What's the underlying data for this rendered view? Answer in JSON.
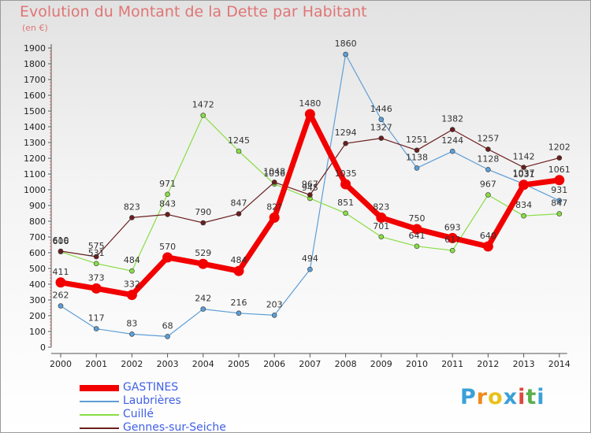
{
  "title": "Evolution du Montant de la Dette par Habitant",
  "subtitle": "(en €)",
  "logo": {
    "text": "Proxiti",
    "colors": [
      "#3aa0d8",
      "#f08a1c",
      "#e8c21a",
      "#3aa0d8",
      "#e0463c",
      "#5ab04a",
      "#3aa0d8"
    ]
  },
  "chart_data": {
    "type": "line",
    "x": [
      "2000",
      "2001",
      "2002",
      "2003",
      "2004",
      "2005",
      "2006",
      "2007",
      "2008",
      "2009",
      "2010",
      "2011",
      "2012",
      "2013",
      "2014"
    ],
    "ylim": [
      0,
      1900
    ],
    "yticks": [
      0,
      100,
      200,
      300,
      400,
      500,
      600,
      700,
      800,
      900,
      1000,
      1100,
      1200,
      1300,
      1400,
      1500,
      1600,
      1700,
      1800,
      1900
    ],
    "grid": false,
    "legend_position": "bottom-left",
    "series": [
      {
        "name": "GASTINES",
        "color": "#f20000",
        "values": [
          411,
          373,
          332,
          570,
          529,
          484,
          823,
          1480,
          1035,
          823,
          750,
          693,
          640,
          1031,
          1061
        ],
        "labels": [
          "411",
          "373",
          "332",
          "570",
          "529",
          "484",
          "82?",
          "1480",
          "1035",
          "823",
          "750",
          "693",
          "640",
          "1031",
          "1061"
        ]
      },
      {
        "name": "Laubrières",
        "color": "#5e9ed6",
        "values": [
          262,
          117,
          83,
          68,
          242,
          216,
          203,
          494,
          1860,
          1446,
          1138,
          1244,
          1128,
          1037,
          931
        ],
        "labels": [
          "262",
          "117",
          "83",
          "68",
          "242",
          "216",
          "203",
          "494",
          "1860",
          "1446",
          "1138",
          "1244",
          "1128",
          "1037",
          "931"
        ]
      },
      {
        "name": "Cuillé",
        "color": "#88dd44",
        "values": [
          606,
          531,
          484,
          971,
          1472,
          1245,
          1036,
          945,
          851,
          701,
          641,
          614,
          967,
          834,
          847
        ],
        "labels": [
          "606",
          "531",
          "484",
          "971",
          "1472",
          "1245",
          "1036",
          "945",
          "851",
          "701",
          "641",
          "61?",
          "967",
          "834",
          "847"
        ]
      },
      {
        "name": "Gennes-sur-Seiche",
        "color": "#6b1e1e",
        "values": [
          610,
          575,
          823,
          843,
          790,
          847,
          1048,
          967,
          1294,
          1327,
          1251,
          1382,
          1257,
          1142,
          1202
        ],
        "labels": [
          "610",
          "575",
          "823",
          "843",
          "790",
          "847",
          "1048",
          "967",
          "1294",
          "1327",
          "1251",
          "1382",
          "1257",
          "1142",
          "1202"
        ]
      }
    ]
  }
}
